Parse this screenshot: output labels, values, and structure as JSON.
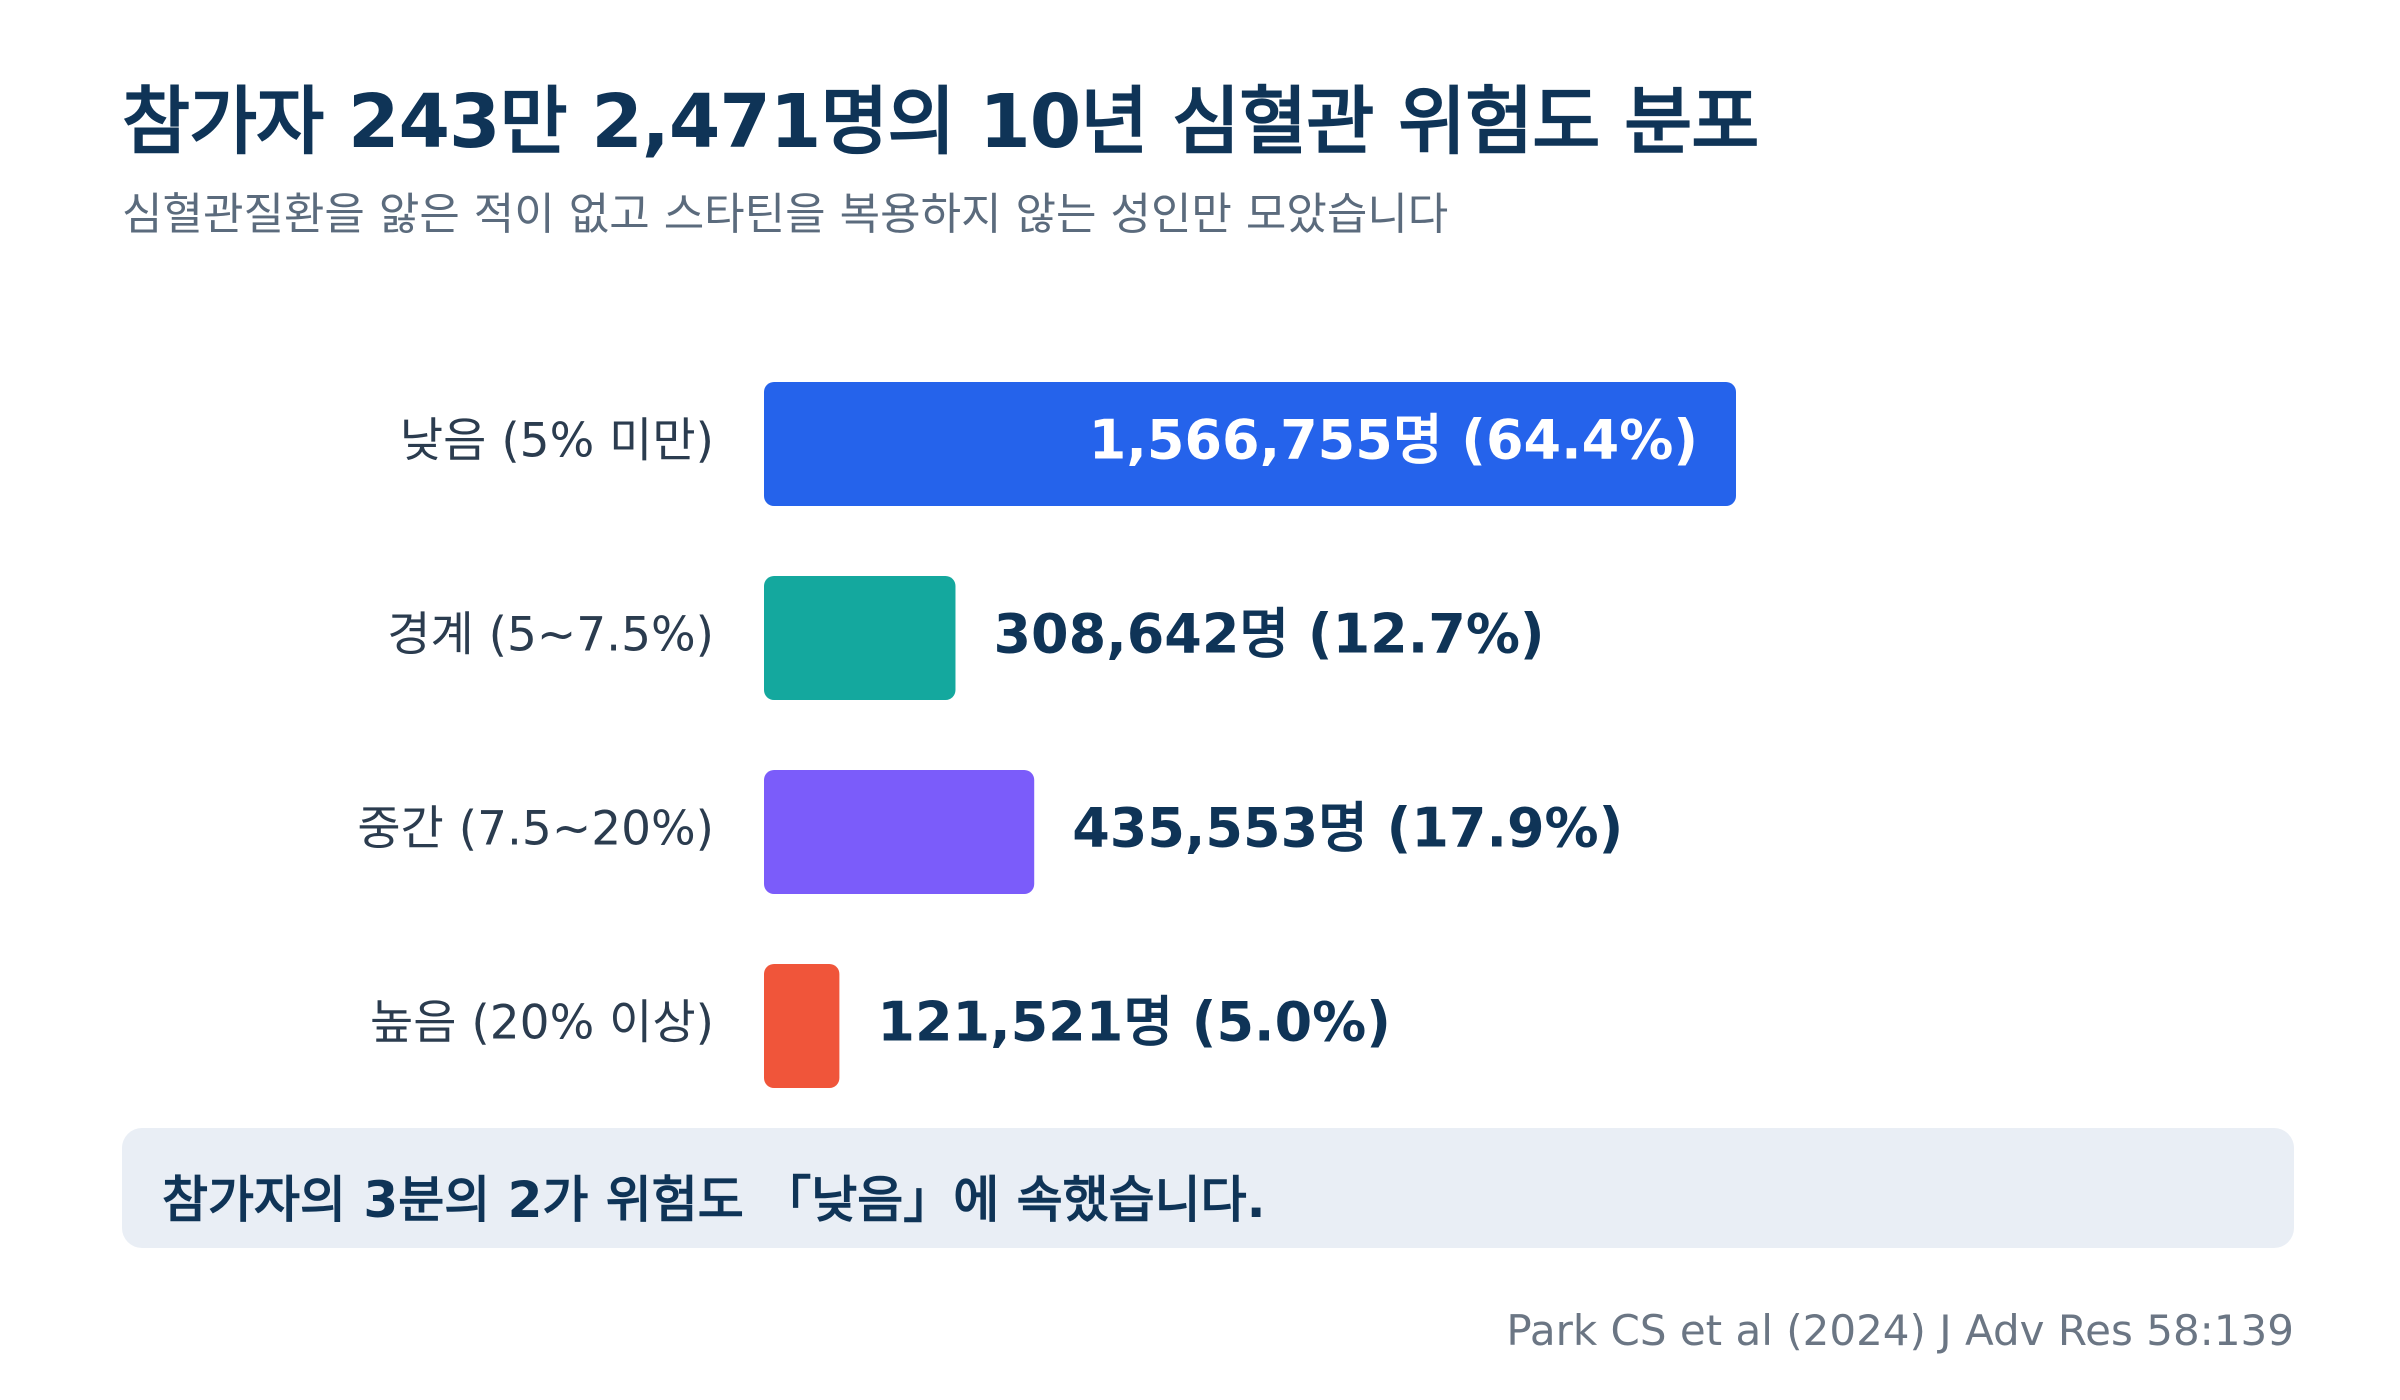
{
  "title": "참가자 243만 2,471명의 10년 심혈관 위험도 분포",
  "subtitle": "심혈관질환을 앓은 적이 없고 스타틴을 복용하지 않는 성인만 모았습니다",
  "callout": "참가자의 3분의 2가 위험도 「낮음」에 속했습니다.",
  "source": "Park CS et al (2024) J Adv Res 58:139",
  "chart_data": {
    "type": "bar",
    "orientation": "horizontal",
    "categories": [
      "낮음 (5% 미만)",
      "경계 (5~7.5%)",
      "중간 (7.5~20%)",
      "높음 (20% 이상)"
    ],
    "values": [
      1566755,
      308642,
      435553,
      121521
    ],
    "percents": [
      64.4,
      12.7,
      17.9,
      5.0
    ],
    "value_labels": [
      "1,566,755명 (64.4%)",
      "308,642명 (12.7%)",
      "435,553명 (17.9%)",
      "121,521명 (5.0%)"
    ],
    "colors": [
      "#2563eb",
      "#14a89e",
      "#7b5cfa",
      "#f0553a"
    ],
    "label_inside_bar": [
      true,
      false,
      false,
      false
    ],
    "xlim": [
      0,
      1566755
    ],
    "grid": false,
    "xlabel": "",
    "ylabel": ""
  }
}
